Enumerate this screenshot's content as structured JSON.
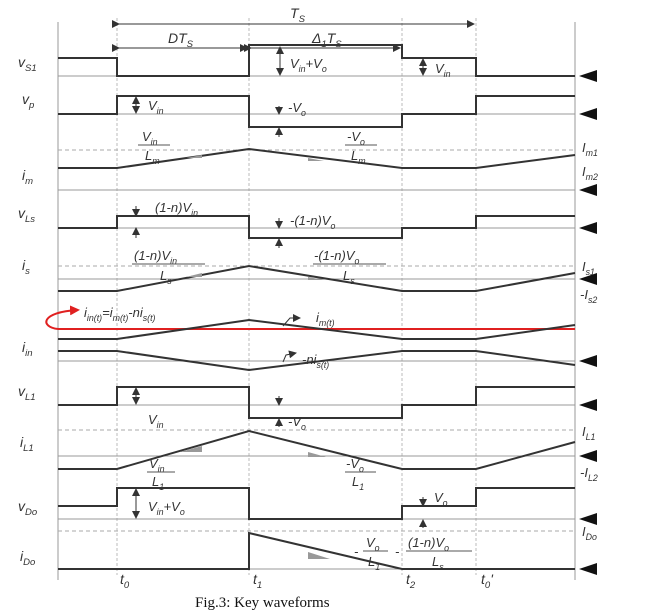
{
  "dimensions": {
    "period": "T_{S}",
    "duty": "DT_{S}",
    "delta": "Δ_{1}T_{S}"
  },
  "rows": {
    "vS1": "v_{S1}",
    "vp": "v_{p}",
    "im": "i_{m}",
    "vLs": "v_{Ls}",
    "is": "i_{s}",
    "iin": "i_{in}",
    "vL1": "v_{L1}",
    "iL1": "i_{L1}",
    "vDo": "v_{Do}",
    "iDo": "i_{Do}"
  },
  "right_labels": {
    "Im1": "I_{m1}",
    "Im2": "I_{m2}",
    "Is1": "I_{s1}",
    "Is2": "-I_{s2}",
    "IL1": "I_{L1}",
    "IL2": "-I_{L2}",
    "IDo": "I_{Do}"
  },
  "times": [
    "t_{0}",
    "t_{1}",
    "t_{2}",
    "t_{0}'"
  ],
  "annotations": {
    "vS1_a": "V_{in}+V_{o}",
    "vS1_b": "V_{in}",
    "vp_a": "V_{in}",
    "vp_b": "-V_{o}",
    "im_up_num": "V_{in}",
    "im_up_den": "L_{m}",
    "im_dn_num": "-V_{o}",
    "im_dn_den": "L_{m}",
    "vLs_a": "(1-n)V_{in}",
    "vLs_b": "-(1-n)V_{o}",
    "is_up_num": "(1-n)V_{in}",
    "is_up_den": "L_{s}",
    "is_dn_num": "-(1-n)V_{o}",
    "is_dn_den": "L_{s}",
    "iin_eq": "i_{in(t)}=i_{m(t)}-ni_{s(t)}",
    "iin_im": "i_{m(t)}",
    "iin_nis": "-ni_{s(t)}",
    "vL1_a": "V_{in}",
    "vL1_b": "-V_{o}",
    "iL1_up_num": "V_{in}",
    "iL1_up_den": "L_{1}",
    "iL1_dn_num": "-V_{o}",
    "iL1_dn_den": "L_{1}",
    "vDo_a": "V_{in}+V_{o}",
    "vDo_b": "V_{o}",
    "iDo_minus1": "-",
    "iDo_f1_num": "V_{o}",
    "iDo_f1_den": "L_{1}",
    "iDo_minus2": "-",
    "iDo_f2_num": "(1-n)V_{o}",
    "iDo_f2_den": "L_{s}"
  },
  "caption": "Fig.3: Key waveforms",
  "colors": {
    "trace": "#333333",
    "highlight": "#e02020",
    "grid": "#bbbbbb"
  }
}
